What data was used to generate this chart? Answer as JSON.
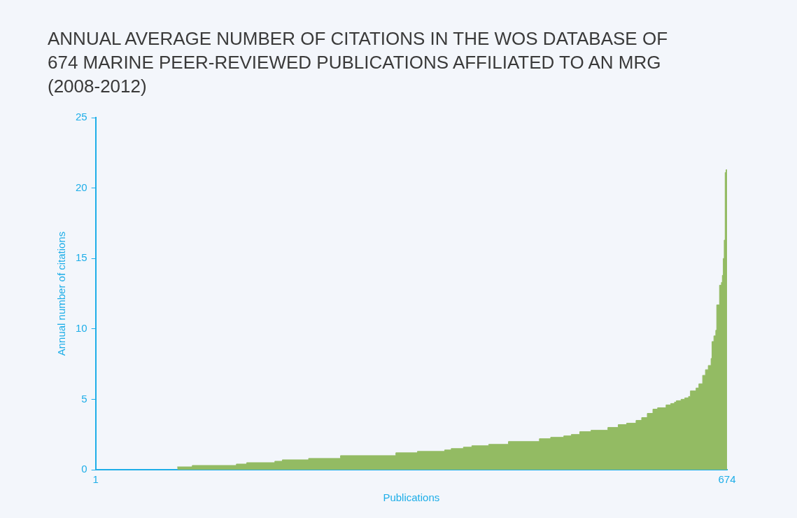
{
  "chart_data": {
    "type": "area",
    "title": "ANNUAL AVERAGE NUMBER OF CITATIONS IN THE WOS DATABASE OF 674 MARINE PEER-REVIEWED PUBLICATIONS AFFILIATED TO AN MRG (2008-2012)",
    "xlabel": "Publications",
    "ylabel": "Annual number of citations",
    "color": "#93bb63",
    "marker": "none",
    "xlim": [
      1,
      674
    ],
    "xticks": [
      1,
      674
    ],
    "ylim": [
      0,
      25
    ],
    "yticks": [
      0,
      5,
      10,
      15,
      20,
      25
    ],
    "grid": false,
    "x": [
      88,
      104,
      104,
      151,
      151,
      162,
      162,
      192,
      192,
      200,
      200,
      228,
      228,
      262,
      262,
      321,
      321,
      344,
      344,
      373,
      373,
      380,
      380,
      393,
      393,
      402,
      402,
      420,
      420,
      441,
      441,
      474,
      474,
      486,
      486,
      500,
      500,
      508,
      508,
      517,
      517,
      529,
      529,
      547,
      547,
      558,
      558,
      567,
      567,
      577,
      577,
      583,
      583,
      589,
      589,
      595,
      595,
      600,
      600,
      609,
      609,
      614,
      614,
      618,
      618,
      620,
      620,
      625,
      625,
      629,
      629,
      633,
      633,
      635,
      635,
      641,
      641,
      644,
      644,
      648,
      648,
      651,
      651,
      654,
      654,
      657,
      657,
      658,
      658,
      660,
      660,
      662,
      662,
      663,
      663,
      666,
      666,
      668,
      668,
      669,
      669,
      670,
      670,
      671,
      671,
      672,
      672,
      673,
      673,
      674
    ],
    "values": [
      0.2,
      0.2,
      0.3,
      0.3,
      0.4,
      0.4,
      0.5,
      0.5,
      0.6,
      0.6,
      0.7,
      0.7,
      0.8,
      0.8,
      1,
      1,
      1.2,
      1.2,
      1.3,
      1.3,
      1.4,
      1.4,
      1.5,
      1.5,
      1.6,
      1.6,
      1.7,
      1.7,
      1.8,
      1.8,
      2,
      2,
      2.2,
      2.2,
      2.3,
      2.3,
      2.4,
      2.4,
      2.5,
      2.5,
      2.7,
      2.7,
      2.8,
      2.8,
      3,
      3,
      3.2,
      3.2,
      3.3,
      3.3,
      3.5,
      3.5,
      3.7,
      3.7,
      4,
      4,
      4.3,
      4.3,
      4.4,
      4.4,
      4.6,
      4.6,
      4.7,
      4.7,
      4.8,
      4.8,
      4.9,
      4.9,
      5,
      5,
      5.1,
      5.1,
      5.2,
      5.2,
      5.6,
      5.6,
      5.8,
      5.8,
      6.1,
      6.1,
      6.7,
      6.7,
      7.1,
      7.1,
      7.4,
      7.4,
      7.9,
      7.9,
      9.1,
      9.1,
      9.5,
      9.5,
      9.9,
      9.9,
      11.7,
      11.7,
      13.1,
      13.1,
      13.3,
      13.3,
      13.8,
      13.8,
      15,
      15,
      16.3,
      16.3,
      21.1,
      21.1,
      21.3,
      21.3
    ]
  }
}
